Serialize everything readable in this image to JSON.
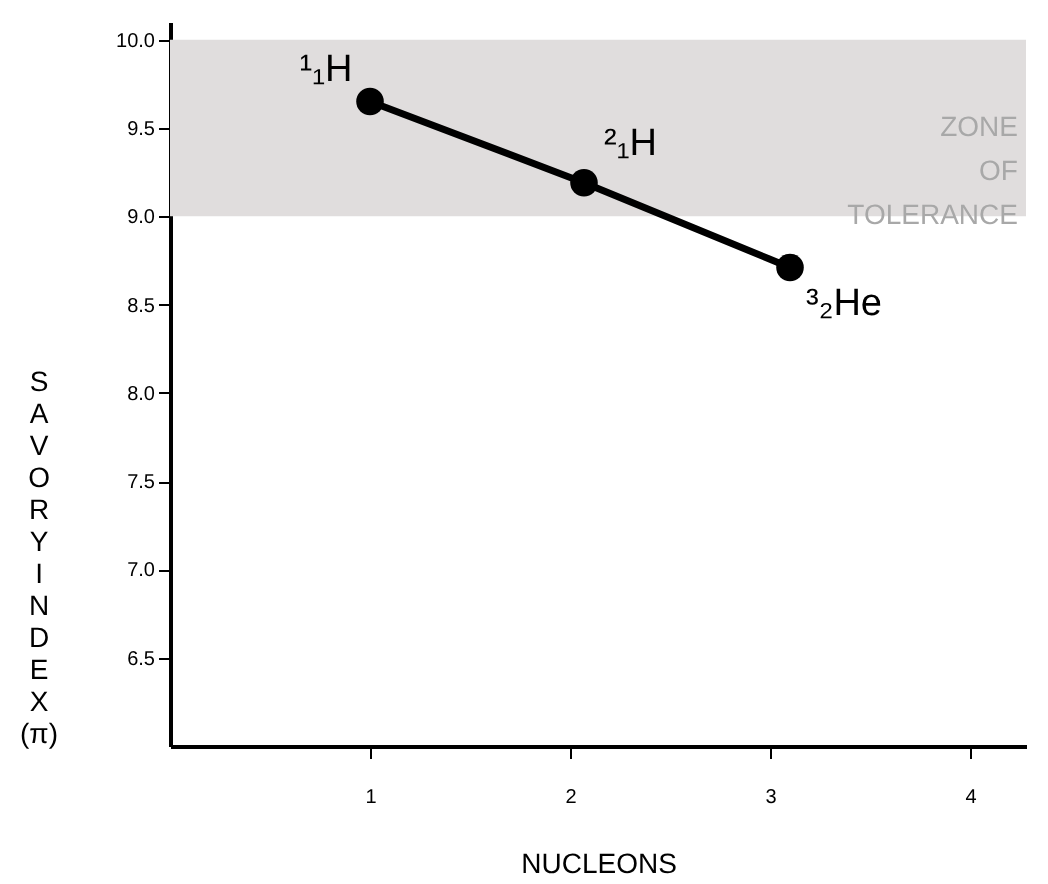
{
  "chart_data": {
    "type": "line",
    "xlabel": "NUCLEONS",
    "ylabel": "SAVORY INDEX (π)",
    "x": [
      1.0,
      2.07,
      3.1
    ],
    "series": [
      {
        "color": "#000000",
        "values": [
          9.65,
          9.19,
          8.71
        ]
      }
    ],
    "marker": "circle",
    "line_style": "solid",
    "xlim": [
      0,
      4.28
    ],
    "ylim": [
      6.0,
      10.1
    ],
    "xticks": [
      1,
      2,
      3,
      4
    ],
    "yticks": [
      {
        "value": 6.5,
        "label": "6.5"
      },
      {
        "value": 7,
        "label": "7.0"
      },
      {
        "value": 7.5,
        "label": "7.5"
      },
      {
        "value": 8,
        "label": "8.0"
      },
      {
        "value": 8.5,
        "label": "8.5"
      },
      {
        "value": 9,
        "label": "9.0"
      },
      {
        "value": 9.5,
        "label": "9.5"
      },
      {
        "value": 10,
        "label": "10.0"
      }
    ],
    "bands": [
      {
        "axis": "y",
        "from": 9.0,
        "to": 10.0,
        "label": "ZONE OF TOLERANCE",
        "color": "#e0dddd"
      }
    ],
    "annotations": [
      {
        "text": "¹₁H",
        "x": 1.0,
        "y": 9.65
      },
      {
        "text": "²₁H",
        "x": 2.07,
        "y": 9.19
      },
      {
        "text": "³₂He",
        "x": 3.1,
        "y": 8.71
      }
    ],
    "grid": false
  }
}
